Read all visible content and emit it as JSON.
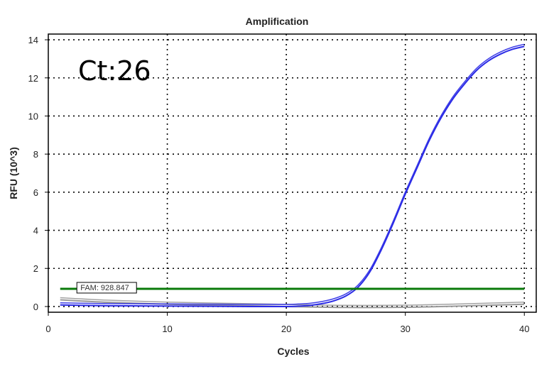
{
  "chart_data": {
    "type": "line",
    "title": "Amplification",
    "xlabel": "Cycles",
    "ylabel": "RFU (10^3)",
    "xlim": [
      0,
      41
    ],
    "ylim": [
      -0.3,
      14.3
    ],
    "x_ticks": [
      0,
      10,
      20,
      30,
      40
    ],
    "y_ticks": [
      0,
      2,
      4,
      6,
      8,
      10,
      12,
      14
    ],
    "grid": true,
    "annotation": "Ct:26",
    "threshold": {
      "label": "FAM: 928.847",
      "value": 0.93,
      "color": "#0a7a0a"
    },
    "series": [
      {
        "color": "#2b2be6",
        "x": [
          1,
          3,
          5,
          8,
          11,
          14,
          17,
          20,
          21,
          22,
          23,
          24,
          25,
          26,
          27,
          28,
          29,
          30,
          31,
          32,
          33,
          34,
          35,
          36,
          37,
          38,
          39,
          40
        ],
        "y": [
          0.08,
          0.06,
          0.04,
          0.03,
          0.02,
          0.01,
          0.0,
          0.0,
          0.02,
          0.06,
          0.15,
          0.3,
          0.55,
          1.0,
          1.8,
          3.0,
          4.4,
          5.9,
          7.3,
          8.7,
          9.9,
          10.9,
          11.7,
          12.4,
          12.9,
          13.25,
          13.5,
          13.65
        ]
      },
      {
        "color": "#9a9a9a",
        "x": [
          1,
          5,
          10,
          15,
          20,
          25,
          30,
          35,
          40
        ],
        "y": [
          0.35,
          0.22,
          0.12,
          0.06,
          0.0,
          -0.05,
          -0.04,
          0.03,
          0.12
        ]
      }
    ]
  }
}
